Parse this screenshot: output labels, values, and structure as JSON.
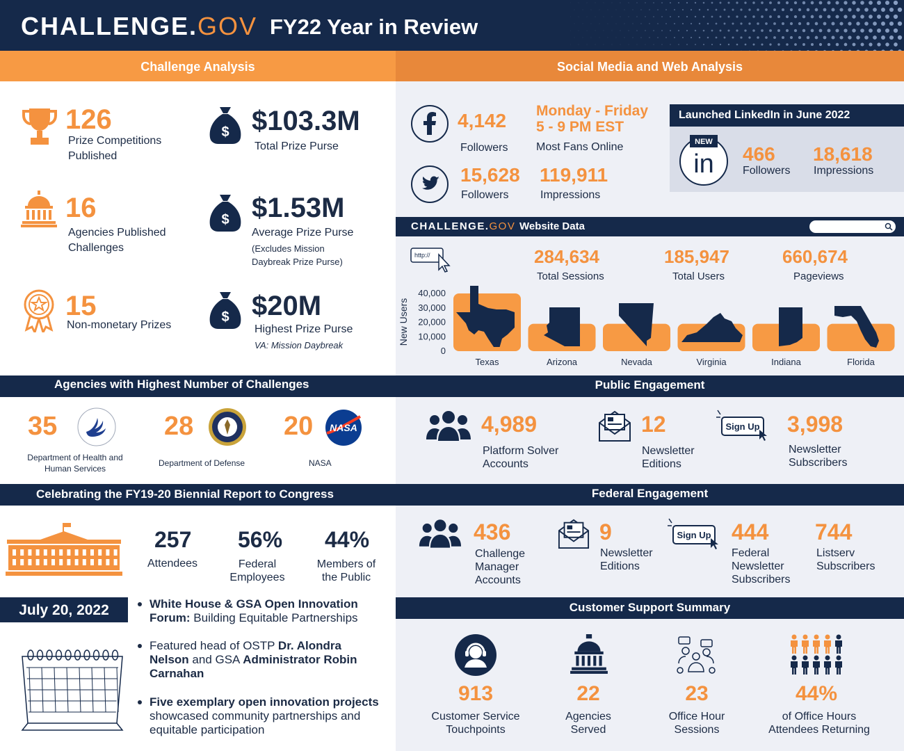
{
  "header": {
    "brand_main": "CHALLENGE.",
    "brand_gov": "GOV",
    "title": "FY22 Year in Review"
  },
  "challenge_analysis": {
    "heading": "Challenge Analysis",
    "prize_competitions": {
      "value": "126",
      "label_1": "Prize Competitions",
      "label_2": "Published"
    },
    "agencies": {
      "value": "16",
      "label_1": "Agencies Published",
      "label_2": "Challenges"
    },
    "nonmonetary": {
      "value": "15",
      "label": "Non-monetary Prizes"
    },
    "total_purse": {
      "value": "$103.3M",
      "label": "Total Prize Purse"
    },
    "avg_purse": {
      "value": "$1.53M",
      "label": "Average Prize Purse",
      "note_1": "(Excludes Mission",
      "note_2": "Daybreak Prize Purse)"
    },
    "highest_purse": {
      "value": "$20M",
      "label": "Highest Prize Purse",
      "note": "VA: Mission Daybreak"
    },
    "dollar_sign": "$"
  },
  "social": {
    "heading": "Social Media and Web Analysis",
    "facebook": {
      "value": "4,142",
      "label": "Followers"
    },
    "fans": {
      "line_1": "Monday - Friday",
      "line_2": "5 - 9 PM EST",
      "label": "Most Fans Online"
    },
    "twitter": {
      "followers": "15,628",
      "followers_label": "Followers",
      "impressions": "119,911",
      "impressions_label": "Impressions"
    },
    "linkedin": {
      "heading": "Launched LinkedIn in June 2022",
      "badge": "NEW",
      "logo_text": "in",
      "followers": "466",
      "followers_label": "Followers",
      "impressions": "18,618",
      "impressions_label": "Impressions"
    }
  },
  "website": {
    "brand_main": "CHALLENGE.",
    "brand_gov": "GOV",
    "heading": "Website Data",
    "url_icon_text": "http://",
    "sessions": {
      "value": "284,634",
      "label": "Total Sessions"
    },
    "users": {
      "value": "185,947",
      "label": "Total Users"
    },
    "pageviews": {
      "value": "660,674",
      "label": "Pageviews"
    }
  },
  "chart_data": {
    "type": "bar",
    "ylabel": "New Users",
    "ylim": [
      0,
      40000
    ],
    "yticks": [
      "40,000",
      "30,000",
      "20,000",
      "10,000",
      "0"
    ],
    "categories": [
      "Texas",
      "Arizona",
      "Nevada",
      "Virginia",
      "Indiana",
      "Florida"
    ],
    "values": [
      40000,
      19000,
      19000,
      19000,
      19000,
      19000
    ]
  },
  "agencies_top": {
    "heading": "Agencies with Highest Number of Challenges",
    "items": [
      {
        "value": "35",
        "name_1": "Department of Health and",
        "name_2": "Human Services"
      },
      {
        "value": "28",
        "name_1": "Department of Defense",
        "name_2": ""
      },
      {
        "value": "20",
        "name_1": "NASA",
        "name_2": ""
      }
    ],
    "nasa_logo_text": "NASA"
  },
  "public": {
    "heading": "Public Engagement",
    "solver": {
      "value": "4,989",
      "label_1": "Platform Solver",
      "label_2": "Accounts"
    },
    "newsletter": {
      "value": "12",
      "label_1": "Newsletter",
      "label_2": "Editions"
    },
    "subscribers": {
      "value": "3,998",
      "label_1": "Newsletter",
      "label_2": "Subscribers"
    },
    "signup_text": "Sign Up"
  },
  "biennial": {
    "heading": "Celebrating the FY19-20 Biennial Report to Congress",
    "attendees": {
      "value": "257",
      "label": "Attendees"
    },
    "federal": {
      "value": "56%",
      "label_1": "Federal",
      "label_2": "Employees"
    },
    "public": {
      "value": "44%",
      "label_1": "Members of",
      "label_2": "the Public"
    }
  },
  "federal": {
    "heading": "Federal Engagement",
    "manager": {
      "value": "436",
      "label_1": "Challenge",
      "label_2": "Manager",
      "label_3": "Accounts"
    },
    "newsletter": {
      "value": "9",
      "label_1": "Newsletter",
      "label_2": "Editions"
    },
    "subscribers": {
      "value": "444",
      "label_1": "Federal",
      "label_2": "Newsletter",
      "label_3": "Subscribers"
    },
    "listserv": {
      "value": "744",
      "label_1": "Listserv",
      "label_2": "Subscribers"
    },
    "signup_text": "Sign Up"
  },
  "event": {
    "date": "July 20, 2022",
    "b1_bold_1": "White House & GSA Open Innovation",
    "b1_bold_2": "Forum:",
    "b1_rest": " Building Equitable Partnerships",
    "b2_plain_1": "Featured head of OSTP ",
    "b2_bold_1": "Dr. Alondra",
    "b2_bold_2": "Nelson",
    "b2_plain_2": " and GSA ",
    "b2_bold_3": "Administrator Robin",
    "b2_bold_4": "Carnahan",
    "b3_bold": "Five exemplary open innovation projects",
    "b3_rest_1": "showcased community partnerships and",
    "b3_rest_2": "equitable participation"
  },
  "support": {
    "heading": "Customer Support Summary",
    "touchpoints": {
      "value": "913",
      "label_1": "Customer Service",
      "label_2": "Touchpoints"
    },
    "agencies": {
      "value": "22",
      "label_1": "Agencies",
      "label_2": "Served"
    },
    "sessions": {
      "value": "23",
      "label_1": "Office Hour",
      "label_2": "Sessions"
    },
    "returning": {
      "value": "44%",
      "label_1": "of Office Hours",
      "label_2": "Attendees Returning"
    }
  },
  "colors": {
    "navy": "#15294a",
    "orange": "#f4923f",
    "light": "#eef0f6"
  }
}
